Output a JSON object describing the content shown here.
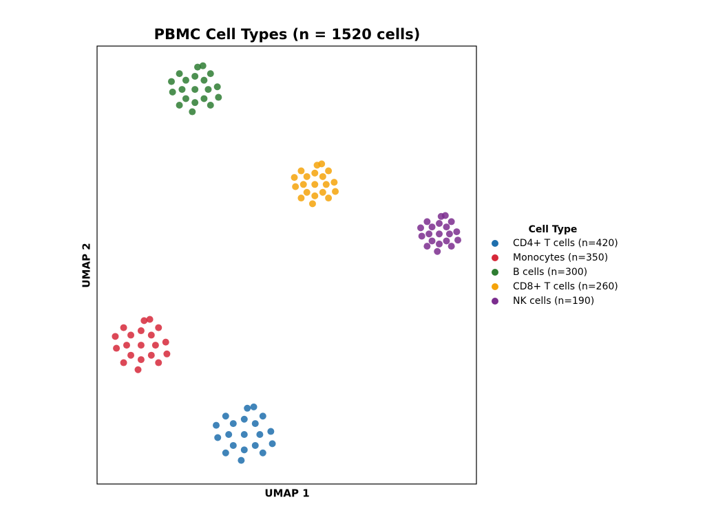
{
  "chart_data": {
    "type": "scatter",
    "title": "PBMC Cell Types (n = 1520 cells)",
    "x_label": "UMAP 1",
    "y_label": "UMAP 2",
    "legend_title": "Cell Type",
    "legend": "right",
    "xlim": [
      0,
      10
    ],
    "ylim": [
      0,
      10
    ],
    "series": [
      {
        "name": "CD4+ T cells (n=420)",
        "color": "#1f6fad",
        "x": [
          3.88,
          4.29,
          3.47,
          3.88,
          3.88,
          4.17,
          3.59,
          4.17,
          3.59,
          4.58,
          3.18,
          3.96,
          3.8,
          4.37,
          3.39,
          4.37,
          3.39,
          4.62,
          3.14,
          4.13
        ],
        "y": [
          1.13,
          1.13,
          1.13,
          1.48,
          0.78,
          1.38,
          1.38,
          0.88,
          0.88,
          1.2,
          1.06,
          1.73,
          0.54,
          1.55,
          1.55,
          0.71,
          0.71,
          0.92,
          1.34,
          1.76
        ]
      },
      {
        "name": "Monocytes (n=350)",
        "color": "#d62839",
        "x": [
          1.16,
          1.54,
          0.78,
          1.16,
          1.16,
          1.43,
          0.89,
          1.43,
          0.89,
          1.81,
          0.51,
          1.24,
          1.08,
          1.62,
          0.7,
          1.62,
          0.7,
          1.84,
          0.48,
          1.39
        ],
        "y": [
          3.17,
          3.17,
          3.17,
          3.5,
          2.84,
          3.4,
          3.4,
          2.94,
          2.94,
          3.24,
          3.1,
          3.73,
          2.61,
          3.57,
          3.57,
          2.77,
          2.77,
          2.97,
          3.37,
          3.76
        ]
      },
      {
        "name": "B cells (n=300)",
        "color": "#2e7d32",
        "x": [
          2.58,
          2.93,
          2.24,
          2.58,
          2.58,
          2.82,
          2.34,
          2.82,
          2.34,
          3.17,
          1.99,
          2.65,
          2.51,
          2.99,
          2.17,
          2.99,
          2.17,
          3.2,
          1.96,
          2.79
        ],
        "y": [
          9.01,
          9.01,
          9.01,
          9.31,
          8.71,
          9.22,
          9.22,
          8.8,
          8.8,
          9.07,
          8.95,
          9.52,
          8.5,
          9.37,
          9.37,
          8.65,
          8.65,
          8.83,
          9.19,
          9.55
        ]
      },
      {
        "name": "CD8+ T cells (n=260)",
        "color": "#f5a30a",
        "x": [
          5.74,
          6.04,
          5.44,
          5.74,
          5.74,
          5.95,
          5.53,
          5.95,
          5.53,
          6.25,
          5.23,
          5.8,
          5.68,
          6.1,
          5.38,
          6.1,
          5.38,
          6.28,
          5.2,
          5.92
        ],
        "y": [
          6.84,
          6.84,
          6.84,
          7.1,
          6.58,
          7.02,
          7.02,
          6.66,
          6.66,
          6.89,
          6.79,
          7.28,
          6.4,
          7.15,
          7.15,
          6.53,
          6.53,
          6.68,
          7.0,
          7.31
        ]
      },
      {
        "name": "NK cells (n=190)",
        "color": "#7b2d8e",
        "x": [
          9.02,
          9.29,
          8.75,
          9.02,
          9.02,
          9.21,
          8.83,
          9.21,
          8.83,
          9.48,
          8.56,
          9.07,
          8.97,
          9.34,
          8.7,
          9.34,
          8.7,
          9.51,
          8.53,
          9.18
        ],
        "y": [
          5.71,
          5.71,
          5.71,
          5.95,
          5.48,
          5.87,
          5.87,
          5.55,
          5.55,
          5.76,
          5.66,
          6.11,
          5.31,
          5.99,
          5.99,
          5.43,
          5.43,
          5.57,
          5.85,
          6.13
        ]
      }
    ]
  }
}
